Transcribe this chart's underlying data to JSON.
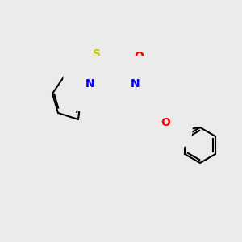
{
  "background_color": "#ebebeb",
  "bond_color": "#000000",
  "atom_colors": {
    "S": "#cccc00",
    "N": "#0000ff",
    "O": "#ff0000",
    "C": "#000000"
  },
  "bond_width": 1.5,
  "font_size": 9,
  "font_size_hetero": 10
}
